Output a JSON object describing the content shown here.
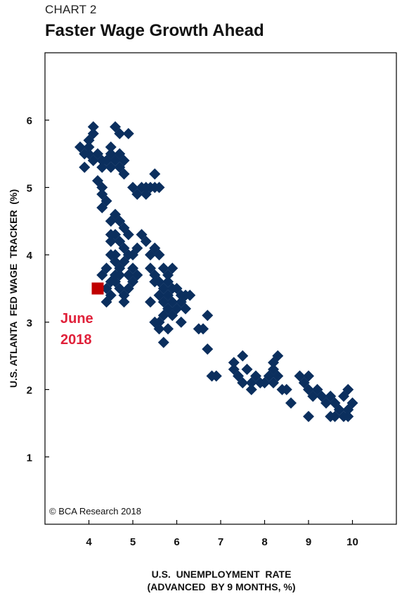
{
  "header": {
    "label": "CHART 2",
    "title": "Faster Wage Growth Ahead"
  },
  "colors": {
    "points": "#0b2f5e",
    "highlight": "#c00000",
    "annotation": "#e0213a"
  },
  "chart_data": {
    "type": "scatter",
    "title": "Faster Wage Growth Ahead",
    "xlabel_line1": "U.S.  UNEMPLOYMENT  RATE",
    "xlabel_line2": "(ADVANCED  BY 9 MONTHS, %)",
    "ylabel": "U.S. ATLANTA  FED WAGE  TRACKER  (%)",
    "xlim": [
      3,
      11
    ],
    "ylim": [
      0,
      7
    ],
    "xticks": [
      4,
      5,
      6,
      7,
      8,
      9,
      10
    ],
    "yticks": [
      1,
      2,
      3,
      4,
      5,
      6
    ],
    "grid": false,
    "copyright": "© BCA Research 2018",
    "highlight": {
      "label_line1": "June",
      "label_line2": "2018",
      "x": 4.2,
      "y": 3.5
    },
    "series": [
      {
        "points": [
          [
            3.8,
            5.6
          ],
          [
            3.9,
            5.5
          ],
          [
            4.0,
            5.5
          ],
          [
            3.9,
            5.3
          ],
          [
            4.0,
            5.7
          ],
          [
            4.1,
            5.8
          ],
          [
            4.1,
            5.9
          ],
          [
            4.0,
            5.6
          ],
          [
            4.1,
            5.4
          ],
          [
            4.2,
            5.5
          ],
          [
            4.3,
            5.4
          ],
          [
            4.3,
            5.3
          ],
          [
            4.4,
            5.4
          ],
          [
            4.5,
            5.3
          ],
          [
            4.5,
            5.5
          ],
          [
            4.6,
            5.4
          ],
          [
            4.7,
            5.5
          ],
          [
            4.8,
            5.4
          ],
          [
            4.7,
            5.3
          ],
          [
            4.5,
            5.6
          ],
          [
            4.6,
            5.9
          ],
          [
            4.7,
            5.8
          ],
          [
            4.9,
            5.8
          ],
          [
            4.8,
            5.2
          ],
          [
            4.2,
            5.1
          ],
          [
            4.3,
            5.0
          ],
          [
            4.3,
            4.9
          ],
          [
            4.4,
            4.8
          ],
          [
            4.3,
            4.7
          ],
          [
            4.5,
            4.5
          ],
          [
            4.5,
            4.3
          ],
          [
            4.5,
            4.2
          ],
          [
            4.6,
            4.6
          ],
          [
            4.7,
            4.5
          ],
          [
            4.8,
            4.4
          ],
          [
            4.6,
            4.3
          ],
          [
            4.7,
            4.2
          ],
          [
            4.8,
            4.1
          ],
          [
            4.6,
            4.0
          ],
          [
            4.5,
            4.0
          ],
          [
            4.6,
            3.9
          ],
          [
            4.7,
            3.8
          ],
          [
            4.8,
            3.9
          ],
          [
            4.9,
            4.0
          ],
          [
            4.6,
            3.7
          ],
          [
            4.5,
            3.6
          ],
          [
            4.4,
            3.5
          ],
          [
            4.5,
            3.4
          ],
          [
            4.4,
            3.3
          ],
          [
            4.7,
            3.5
          ],
          [
            4.8,
            3.4
          ],
          [
            4.9,
            3.5
          ],
          [
            4.8,
            3.3
          ],
          [
            4.6,
            3.6
          ],
          [
            4.7,
            3.7
          ],
          [
            4.9,
            3.7
          ],
          [
            5.0,
            3.8
          ],
          [
            5.1,
            3.7
          ],
          [
            5.0,
            3.6
          ],
          [
            5.0,
            4.0
          ],
          [
            5.1,
            4.1
          ],
          [
            4.9,
            4.3
          ],
          [
            4.4,
            3.8
          ],
          [
            4.3,
            3.7
          ],
          [
            5.0,
            5.0
          ],
          [
            5.1,
            4.9
          ],
          [
            5.2,
            5.0
          ],
          [
            5.3,
            4.9
          ],
          [
            5.4,
            5.0
          ],
          [
            5.5,
            5.0
          ],
          [
            5.6,
            5.0
          ],
          [
            5.3,
            5.0
          ],
          [
            5.5,
            5.2
          ],
          [
            5.2,
            4.3
          ],
          [
            5.3,
            4.2
          ],
          [
            5.4,
            4.0
          ],
          [
            5.5,
            4.1
          ],
          [
            5.6,
            4.0
          ],
          [
            5.4,
            3.8
          ],
          [
            5.5,
            3.7
          ],
          [
            5.6,
            3.6
          ],
          [
            5.7,
            3.8
          ],
          [
            5.8,
            3.6
          ],
          [
            5.7,
            3.5
          ],
          [
            5.6,
            3.4
          ],
          [
            5.8,
            3.4
          ],
          [
            5.9,
            3.5
          ],
          [
            6.0,
            3.5
          ],
          [
            6.1,
            3.4
          ],
          [
            5.9,
            3.3
          ],
          [
            6.0,
            3.2
          ],
          [
            6.1,
            3.3
          ],
          [
            6.2,
            3.4
          ],
          [
            6.2,
            3.2
          ],
          [
            6.3,
            3.4
          ],
          [
            5.8,
            3.7
          ],
          [
            5.9,
            3.8
          ],
          [
            5.8,
            3.2
          ],
          [
            5.7,
            3.1
          ],
          [
            5.6,
            3.0
          ],
          [
            5.5,
            3.0
          ],
          [
            5.6,
            2.9
          ],
          [
            5.4,
            3.3
          ],
          [
            5.5,
            3.6
          ],
          [
            5.7,
            3.3
          ],
          [
            5.9,
            3.1
          ],
          [
            6.1,
            3.0
          ],
          [
            5.8,
            2.9
          ],
          [
            5.7,
            2.7
          ],
          [
            6.5,
            2.9
          ],
          [
            6.6,
            2.9
          ],
          [
            6.7,
            3.1
          ],
          [
            6.7,
            2.6
          ],
          [
            6.8,
            2.2
          ],
          [
            6.9,
            2.2
          ],
          [
            7.3,
            2.3
          ],
          [
            7.3,
            2.4
          ],
          [
            7.4,
            2.2
          ],
          [
            7.5,
            2.5
          ],
          [
            7.6,
            2.3
          ],
          [
            7.5,
            2.1
          ],
          [
            7.7,
            2.1
          ],
          [
            7.7,
            2.0
          ],
          [
            7.8,
            2.2
          ],
          [
            7.9,
            2.1
          ],
          [
            8.0,
            2.1
          ],
          [
            8.1,
            2.2
          ],
          [
            8.2,
            2.1
          ],
          [
            8.2,
            2.3
          ],
          [
            8.3,
            2.2
          ],
          [
            8.3,
            2.5
          ],
          [
            8.2,
            2.4
          ],
          [
            8.4,
            2.0
          ],
          [
            8.5,
            2.0
          ],
          [
            8.6,
            1.8
          ],
          [
            8.8,
            2.2
          ],
          [
            8.9,
            2.1
          ],
          [
            9.0,
            2.2
          ],
          [
            9.0,
            2.0
          ],
          [
            9.1,
            1.9
          ],
          [
            9.0,
            1.6
          ],
          [
            9.2,
            2.0
          ],
          [
            9.3,
            1.9
          ],
          [
            9.4,
            1.8
          ],
          [
            9.5,
            1.9
          ],
          [
            9.5,
            1.6
          ],
          [
            9.6,
            1.8
          ],
          [
            9.7,
            1.7
          ],
          [
            9.8,
            1.6
          ],
          [
            9.9,
            1.6
          ],
          [
            9.8,
            1.9
          ],
          [
            9.9,
            2.0
          ],
          [
            10.0,
            1.8
          ],
          [
            9.9,
            1.7
          ],
          [
            9.6,
            1.6
          ]
        ]
      }
    ]
  }
}
